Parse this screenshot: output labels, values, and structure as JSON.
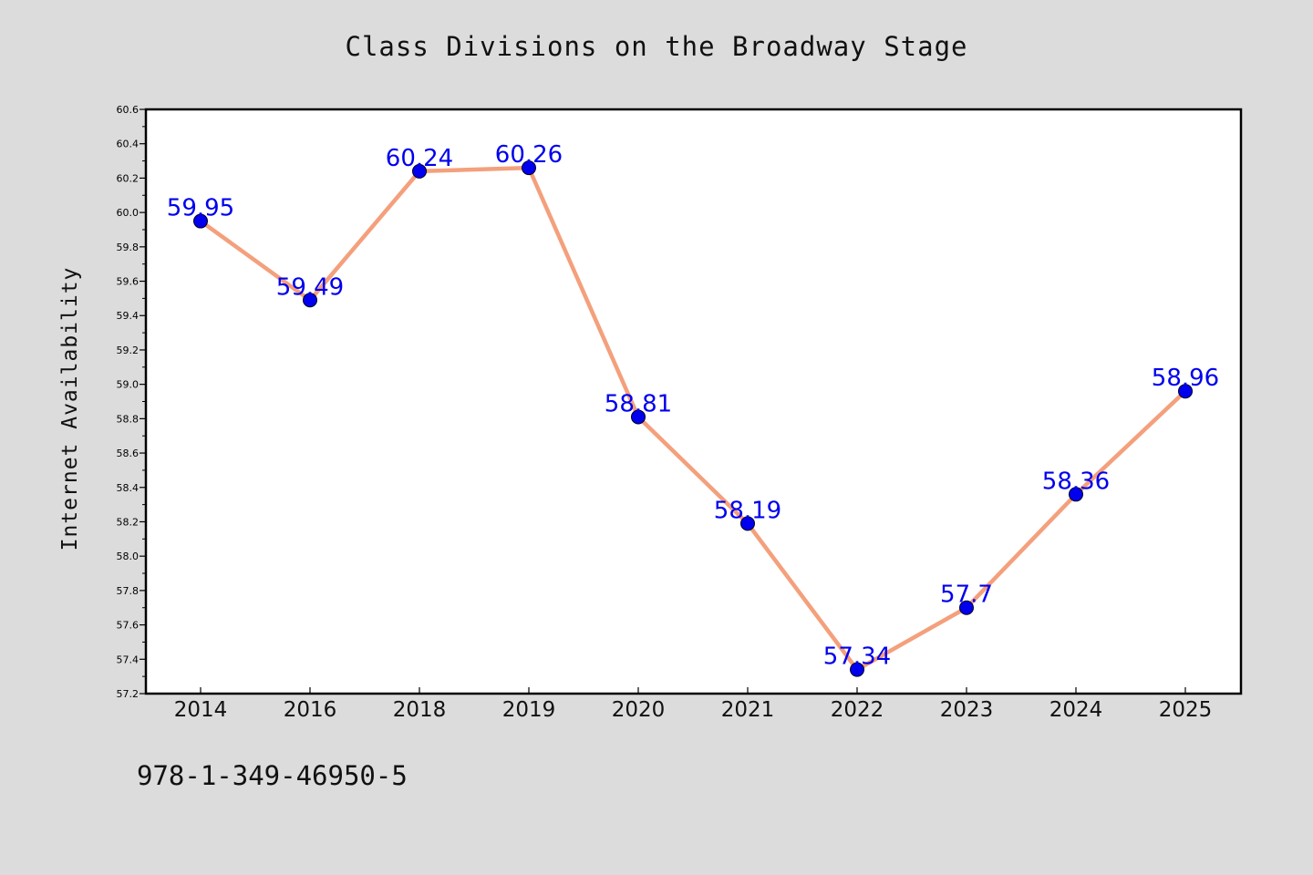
{
  "page": {
    "background_color": "#dcdcdc",
    "isbn": "978-1-349-46950-5"
  },
  "chart_data": {
    "type": "line",
    "title": "Class Divisions on the Broadway Stage",
    "xlabel": "",
    "ylabel": "Internet Availability",
    "categories": [
      "2014",
      "2016",
      "2018",
      "2019",
      "2020",
      "2021",
      "2022",
      "2023",
      "2024",
      "2025"
    ],
    "series": [
      {
        "values": [
          59.95,
          59.49,
          60.24,
          60.26,
          58.81,
          58.19,
          57.34,
          57.7,
          58.36,
          58.96
        ],
        "data_labels": [
          "59.95",
          "59.49",
          "60.24",
          "60.26",
          "58.81",
          "58.19",
          "57.34",
          "57.7",
          "58.36",
          "58.96"
        ],
        "line_color": "#f4a07c",
        "marker_color": "#0000ee"
      }
    ],
    "ylim": [
      57.2,
      60.6
    ],
    "yticks": [
      57.2,
      57.4,
      57.6,
      57.8,
      58.0,
      58.2,
      58.4,
      58.6,
      58.8,
      59.0,
      59.2,
      59.4,
      59.6,
      59.8,
      60.0,
      60.2,
      60.4,
      60.6
    ],
    "ytick_labels": [
      "57.2",
      "57.4",
      "57.6",
      "57.8",
      "58.0",
      "58.2",
      "58.4",
      "58.6",
      "58.8",
      "59.0",
      "59.2",
      "59.4",
      "59.6",
      "59.8",
      "60.0",
      "60.2",
      "60.4",
      "60.6"
    ],
    "grid": false,
    "legend": "none",
    "plot_background": "#ffffff"
  }
}
